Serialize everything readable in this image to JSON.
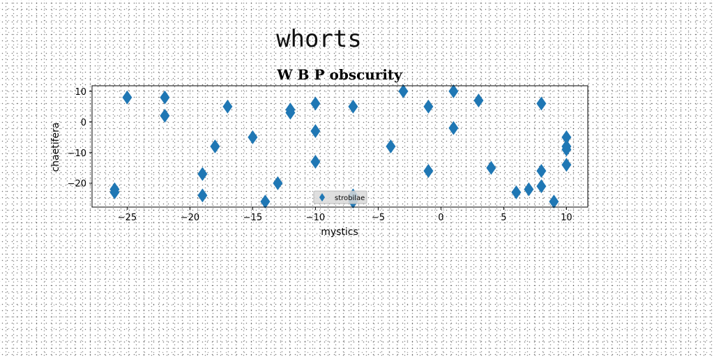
{
  "page": {
    "title": "whorts"
  },
  "chart_data": {
    "type": "scatter",
    "title": "W B P obscurity",
    "xlabel": "mystics",
    "ylabel": "chaetifera",
    "xlim": [
      -27.8,
      11.7
    ],
    "ylim": [
      -27.8,
      11.8
    ],
    "xticks": [
      -25,
      -20,
      -15,
      -10,
      -5,
      0,
      5,
      10
    ],
    "yticks": [
      10,
      0,
      -10,
      -20
    ],
    "grid": false,
    "legend": {
      "position": "lower center"
    },
    "color": "#1f77b4",
    "marker": "thin-diamond",
    "series": [
      {
        "name": "strobilae",
        "points": [
          [
            -26,
            -22
          ],
          [
            -26,
            -23
          ],
          [
            -25,
            8
          ],
          [
            -22,
            8
          ],
          [
            -22,
            2
          ],
          [
            -19,
            -17
          ],
          [
            -19,
            -24
          ],
          [
            -18,
            -8
          ],
          [
            -17,
            5
          ],
          [
            -15,
            -5
          ],
          [
            -14,
            -26
          ],
          [
            -13,
            -20
          ],
          [
            -12,
            4
          ],
          [
            -12,
            3
          ],
          [
            -10,
            6
          ],
          [
            -10,
            -3
          ],
          [
            -10,
            -13
          ],
          [
            -7,
            5
          ],
          [
            -7,
            -24
          ],
          [
            -7,
            -26
          ],
          [
            -4,
            -8
          ],
          [
            -3,
            10
          ],
          [
            -1,
            5
          ],
          [
            -1,
            -16
          ],
          [
            1,
            10
          ],
          [
            1,
            -2
          ],
          [
            3,
            7
          ],
          [
            4,
            -15
          ],
          [
            6,
            -23
          ],
          [
            7,
            -22
          ],
          [
            8,
            6
          ],
          [
            8,
            -16
          ],
          [
            8,
            -21
          ],
          [
            9,
            -26
          ],
          [
            10,
            -5
          ],
          [
            10,
            -8
          ],
          [
            10,
            -9
          ],
          [
            10,
            -14
          ]
        ]
      }
    ]
  }
}
